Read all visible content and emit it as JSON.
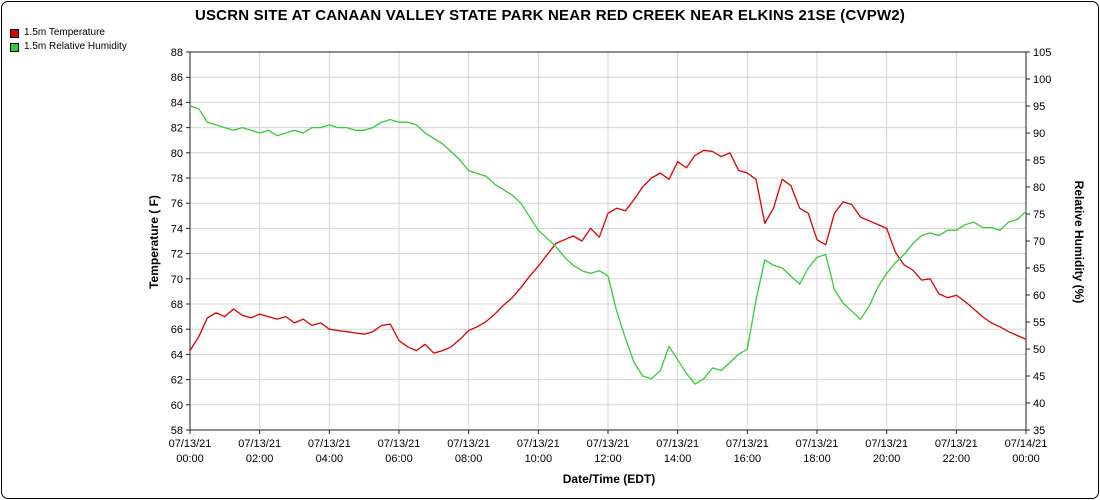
{
  "chart_data": {
    "type": "line",
    "title": "USCRN SITE AT CANAAN VALLEY STATE PARK NEAR RED CREEK NEAR ELKINS 21SE (CVPW2)",
    "xlabel": "Date/Time (EDT)",
    "ylabel_left": "Temperature ( F)",
    "ylabel_right": "Relative Humidity (%)",
    "grid": true,
    "legend_position": "top-left",
    "left_axis": {
      "min": 58,
      "max": 88,
      "step": 2
    },
    "right_axis": {
      "min": 35,
      "max": 105,
      "step": 5
    },
    "x_interval_minutes": 15,
    "x_ticks": [
      {
        "date": "07/13/21",
        "time": "00:00"
      },
      {
        "date": "07/13/21",
        "time": "02:00"
      },
      {
        "date": "07/13/21",
        "time": "04:00"
      },
      {
        "date": "07/13/21",
        "time": "06:00"
      },
      {
        "date": "07/13/21",
        "time": "08:00"
      },
      {
        "date": "07/13/21",
        "time": "10:00"
      },
      {
        "date": "07/13/21",
        "time": "12:00"
      },
      {
        "date": "07/13/21",
        "time": "14:00"
      },
      {
        "date": "07/13/21",
        "time": "16:00"
      },
      {
        "date": "07/13/21",
        "time": "18:00"
      },
      {
        "date": "07/13/21",
        "time": "20:00"
      },
      {
        "date": "07/13/21",
        "time": "22:00"
      },
      {
        "date": "07/14/21",
        "time": "00:00"
      }
    ],
    "series": [
      {
        "name": "1.5m Temperature",
        "axis": "left",
        "color": "#dd0000",
        "values": [
          64.3,
          65.4,
          66.9,
          67.3,
          67.0,
          67.6,
          67.1,
          66.9,
          67.2,
          67.0,
          66.8,
          67.0,
          66.5,
          66.8,
          66.3,
          66.5,
          66.0,
          65.9,
          65.8,
          65.7,
          65.6,
          65.8,
          66.3,
          66.4,
          65.1,
          64.6,
          64.3,
          64.8,
          64.1,
          64.3,
          64.6,
          65.2,
          65.9,
          66.2,
          66.6,
          67.2,
          67.9,
          68.5,
          69.3,
          70.2,
          71.0,
          71.9,
          72.8,
          73.1,
          73.4,
          73.0,
          74.0,
          73.3,
          75.2,
          75.6,
          75.4,
          76.3,
          77.3,
          78.0,
          78.4,
          77.9,
          79.3,
          78.8,
          79.8,
          80.2,
          80.1,
          79.7,
          80.0,
          78.6,
          78.4,
          77.9,
          74.4,
          75.6,
          77.9,
          77.4,
          75.6,
          75.2,
          73.1,
          72.7,
          75.2,
          76.1,
          75.9,
          74.9,
          74.6,
          74.3,
          74.0,
          72.1,
          71.1,
          70.7,
          69.9,
          70.0,
          68.8,
          68.5,
          68.7,
          68.2,
          67.6,
          67.0,
          66.5,
          66.2,
          65.8,
          65.5,
          65.2
        ]
      },
      {
        "name": "1.5m Relative Humidity",
        "axis": "right",
        "color": "#33cc33",
        "values": [
          95.0,
          94.5,
          92.0,
          91.5,
          91.0,
          90.5,
          91.0,
          90.5,
          90.0,
          90.5,
          89.5,
          90.0,
          90.5,
          90.0,
          91.0,
          91.0,
          91.5,
          91.0,
          91.0,
          90.5,
          90.5,
          91.0,
          92.0,
          92.5,
          92.0,
          92.0,
          91.5,
          90.0,
          89.0,
          88.0,
          86.5,
          85.0,
          83.0,
          82.5,
          82.0,
          80.5,
          79.5,
          78.5,
          77.0,
          74.5,
          72.0,
          70.5,
          69.0,
          67.0,
          65.5,
          64.5,
          64.0,
          64.5,
          63.5,
          57.0,
          52.0,
          47.5,
          45.0,
          44.5,
          46.0,
          50.5,
          48.0,
          45.5,
          43.5,
          44.5,
          46.5,
          46.0,
          47.5,
          49.0,
          50.0,
          59.0,
          66.5,
          65.5,
          65.0,
          63.5,
          62.0,
          65.0,
          67.0,
          67.5,
          61.0,
          58.5,
          57.0,
          55.5,
          58.0,
          61.5,
          64.0,
          66.0,
          67.5,
          69.5,
          71.0,
          71.5,
          71.0,
          72.0,
          72.0,
          73.0,
          73.5,
          72.5,
          72.5,
          72.0,
          73.5,
          74.0,
          75.5
        ]
      }
    ]
  }
}
